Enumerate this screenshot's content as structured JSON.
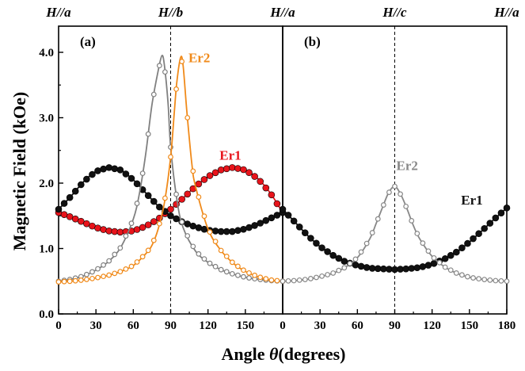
{
  "chart_data": [
    {
      "type": "line",
      "panel": "(a)",
      "top_labels": [
        "H//a",
        "H//b",
        "H//a"
      ],
      "xlim": [
        0,
        180
      ],
      "ylim": [
        0.0,
        4.4
      ],
      "x_ticks": [
        "0",
        "30",
        "60",
        "90",
        "120",
        "150"
      ],
      "y_ticks": [
        "0.0",
        "1.0",
        "2.0",
        "3.0",
        "4.0"
      ],
      "vline_x": 90,
      "series": [
        {
          "label": "Er1",
          "color": "#e8141b",
          "marker": "filled-circle",
          "x": [
            0,
            10,
            20,
            30,
            40,
            50,
            60,
            70,
            80,
            90,
            100,
            110,
            120,
            130,
            140,
            150,
            160,
            170,
            180
          ],
          "y": [
            1.55,
            1.48,
            1.4,
            1.32,
            1.27,
            1.25,
            1.27,
            1.34,
            1.45,
            1.6,
            1.77,
            1.95,
            2.1,
            2.2,
            2.24,
            2.2,
            2.07,
            1.85,
            1.55
          ]
        },
        {
          "label": "",
          "color": "#111111",
          "marker": "filled-circle",
          "x": [
            0,
            10,
            20,
            30,
            40,
            50,
            60,
            70,
            80,
            90,
            100,
            110,
            120,
            130,
            140,
            150,
            160,
            170,
            180
          ],
          "y": [
            1.6,
            1.8,
            2.02,
            2.18,
            2.24,
            2.2,
            2.05,
            1.85,
            1.65,
            1.5,
            1.4,
            1.33,
            1.28,
            1.26,
            1.26,
            1.3,
            1.37,
            1.46,
            1.55
          ]
        },
        {
          "label": "",
          "color": "#808080",
          "marker": "open-circle",
          "x": [
            0,
            10,
            20,
            30,
            40,
            50,
            60,
            65,
            70,
            75,
            80,
            83,
            85,
            88,
            90,
            95,
            100,
            110,
            120,
            130,
            140,
            150,
            160,
            170,
            180
          ],
          "y": [
            0.5,
            0.53,
            0.58,
            0.67,
            0.8,
            1.02,
            1.45,
            1.85,
            2.45,
            3.2,
            3.72,
            3.95,
            3.8,
            3.2,
            2.55,
            1.75,
            1.32,
            0.96,
            0.79,
            0.68,
            0.61,
            0.56,
            0.53,
            0.51,
            0.5
          ]
        },
        {
          "label": "Er2",
          "color": "#f08a1a",
          "marker": "open-circle",
          "x": [
            0,
            10,
            20,
            30,
            40,
            50,
            60,
            70,
            75,
            80,
            85,
            90,
            93,
            95,
            98,
            100,
            103,
            107,
            110,
            120,
            130,
            140,
            150,
            160,
            170,
            180
          ],
          "y": [
            0.49,
            0.5,
            0.52,
            0.55,
            0.59,
            0.65,
            0.74,
            0.92,
            1.05,
            1.3,
            1.7,
            2.4,
            3.1,
            3.55,
            3.92,
            3.8,
            3.1,
            2.3,
            1.95,
            1.3,
            0.98,
            0.78,
            0.65,
            0.57,
            0.52,
            0.5
          ]
        }
      ]
    },
    {
      "type": "line",
      "panel": "(b)",
      "top_labels": [
        "H//c",
        "H//a"
      ],
      "xlim": [
        0,
        180
      ],
      "ylim": [
        0.0,
        4.4
      ],
      "x_ticks": [
        "0",
        "30",
        "60",
        "90",
        "120",
        "150",
        "180"
      ],
      "vline_x": 90,
      "series": [
        {
          "label": "Er1",
          "color": "#111111",
          "marker": "filled-circle",
          "x": [
            0,
            10,
            20,
            30,
            40,
            50,
            60,
            70,
            80,
            90,
            100,
            110,
            120,
            130,
            140,
            150,
            160,
            170,
            180
          ],
          "y": [
            1.6,
            1.4,
            1.2,
            1.03,
            0.9,
            0.8,
            0.74,
            0.7,
            0.69,
            0.68,
            0.69,
            0.71,
            0.76,
            0.84,
            0.95,
            1.1,
            1.27,
            1.45,
            1.62
          ]
        },
        {
          "label": "Er2",
          "color": "#888888",
          "marker": "open-circle",
          "x": [
            0,
            10,
            20,
            30,
            40,
            50,
            60,
            70,
            75,
            80,
            85,
            90,
            95,
            100,
            105,
            110,
            120,
            130,
            140,
            150,
            160,
            170,
            180
          ],
          "y": [
            0.5,
            0.51,
            0.53,
            0.57,
            0.62,
            0.71,
            0.86,
            1.15,
            1.38,
            1.62,
            1.85,
            1.95,
            1.82,
            1.6,
            1.35,
            1.15,
            0.88,
            0.72,
            0.62,
            0.56,
            0.53,
            0.51,
            0.5
          ]
        }
      ]
    }
  ],
  "axes": {
    "ylabel": "Magnetic Field (kOe)",
    "xlabel_prefix": "Angle ",
    "xlabel_symbol": "θ",
    "xlabel_suffix": "(degrees)"
  }
}
